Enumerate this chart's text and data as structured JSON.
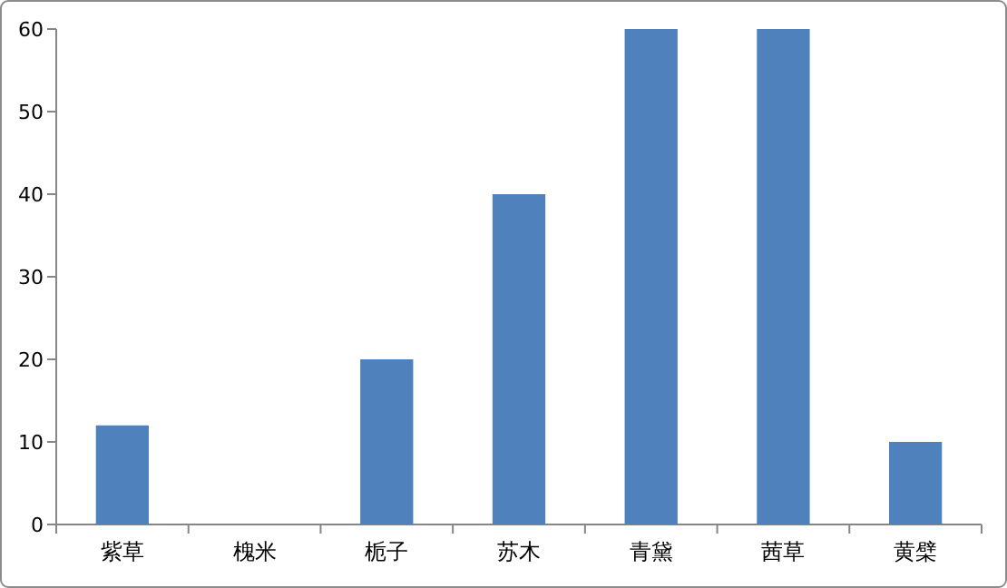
{
  "chart_data": {
    "type": "bar",
    "categories": [
      "紫草",
      "槐米",
      "栀子",
      "苏木",
      "青黛",
      "茜草",
      "黄檗"
    ],
    "values": [
      12,
      0,
      20,
      40,
      60,
      60,
      10
    ],
    "color": "#4f81bd",
    "ylim": [
      0,
      60
    ],
    "yticks": [
      0,
      10,
      20,
      30,
      40,
      50,
      60
    ]
  }
}
